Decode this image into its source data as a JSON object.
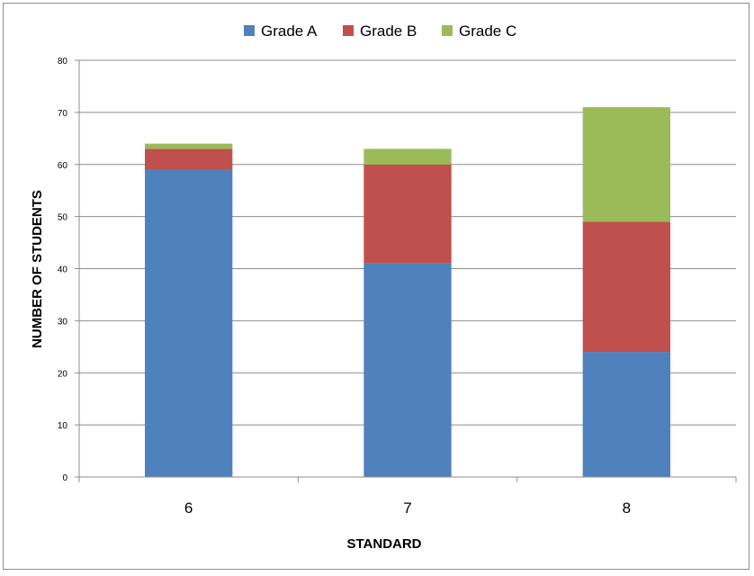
{
  "chart_data": {
    "type": "bar",
    "stacked": true,
    "categories": [
      "6",
      "7",
      "8"
    ],
    "series": [
      {
        "name": "Grade A",
        "values": [
          59,
          41,
          24
        ],
        "color": "#4f81bd"
      },
      {
        "name": "Grade B",
        "values": [
          4,
          19,
          25
        ],
        "color": "#c0504d"
      },
      {
        "name": "Grade C",
        "values": [
          1,
          3,
          22
        ],
        "color": "#9bbb59"
      }
    ],
    "xlabel": "STANDARD",
    "ylabel": "NUMBER OF STUDENTS",
    "ylim": [
      0,
      80
    ],
    "yticks": [
      "0",
      "10",
      "20",
      "30",
      "40",
      "50",
      "60",
      "70",
      "80"
    ],
    "grid": true,
    "legend_position": "top"
  }
}
